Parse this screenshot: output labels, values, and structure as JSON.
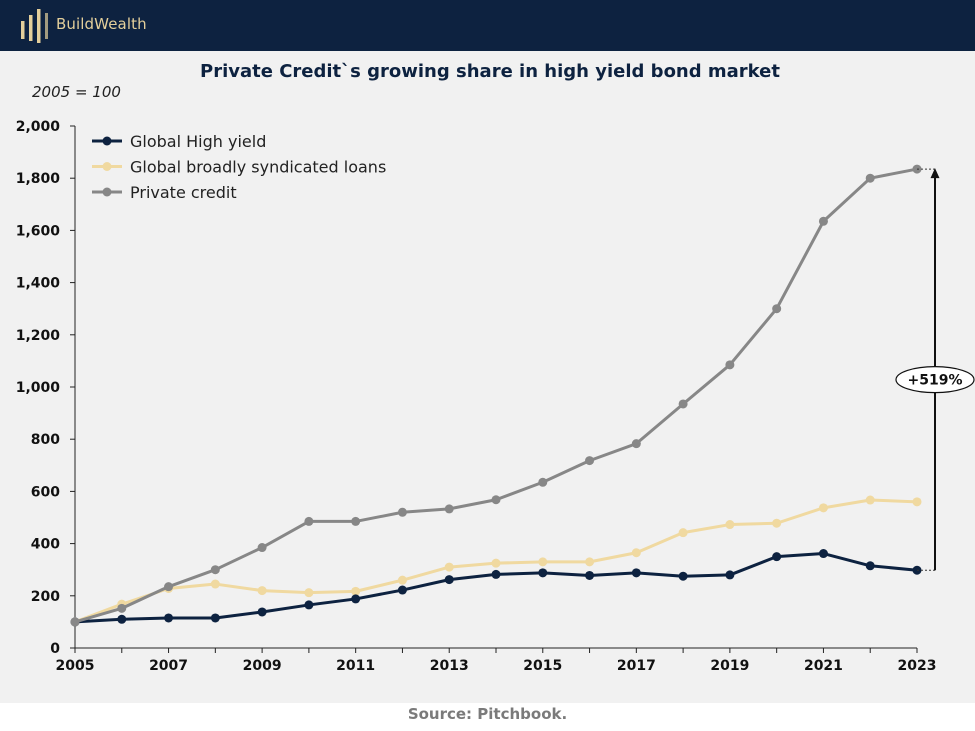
{
  "brand": {
    "name": "BuildWealth",
    "gold": "#e3cf9b",
    "navy": "#0d2240"
  },
  "footer": {
    "source": "Source: Pitchbook."
  },
  "chart_data": {
    "type": "line",
    "title": "Private Credit`s growing share in high yield bond market",
    "subtitle": "2005 = 100",
    "xlabel": "",
    "ylabel": "",
    "ylim": [
      0,
      2000
    ],
    "yticks": [
      0,
      200,
      400,
      600,
      800,
      1000,
      1200,
      1400,
      1600,
      1800,
      2000
    ],
    "ytick_labels": [
      "0",
      "200",
      "400",
      "600",
      "800",
      "1,000",
      "1,200",
      "1,400",
      "1,600",
      "1,800",
      "2,000"
    ],
    "xlim": [
      2005,
      2023
    ],
    "xticks": [
      2005,
      2007,
      2009,
      2011,
      2013,
      2015,
      2017,
      2019,
      2021,
      2023
    ],
    "x": [
      2005,
      2006,
      2007,
      2008,
      2009,
      2010,
      2011,
      2012,
      2013,
      2014,
      2015,
      2016,
      2017,
      2018,
      2019,
      2020,
      2021,
      2022,
      2023
    ],
    "grid": false,
    "legend": "top-left",
    "series": [
      {
        "name": "Global High yield",
        "color": "#0d2240",
        "values": [
          100,
          110,
          115,
          115,
          138,
          165,
          188,
          222,
          262,
          282,
          288,
          278,
          288,
          275,
          280,
          350,
          362,
          315,
          298
        ]
      },
      {
        "name": "Global broadly syndicated loans",
        "color": "#f0d9a0",
        "values": [
          100,
          168,
          228,
          245,
          220,
          212,
          217,
          260,
          310,
          325,
          330,
          330,
          365,
          442,
          473,
          478,
          537,
          567,
          560
        ]
      },
      {
        "name": "Private credit",
        "color": "#878787",
        "values": [
          100,
          152,
          235,
          300,
          385,
          485,
          485,
          520,
          533,
          568,
          635,
          718,
          783,
          935,
          1085,
          1300,
          1635,
          1800,
          1835
        ]
      }
    ],
    "annotation": {
      "label": "+519%"
    }
  }
}
